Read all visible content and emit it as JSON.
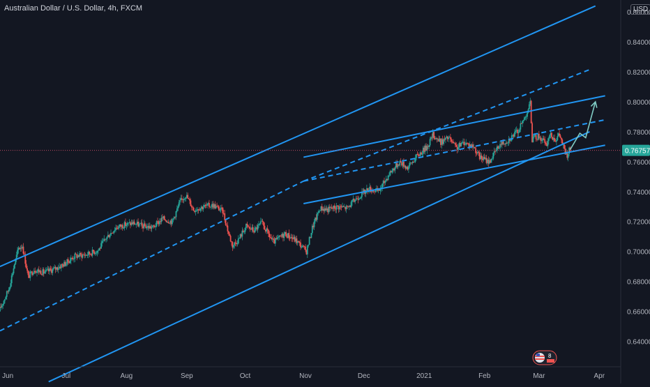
{
  "header": {
    "symbol": "Australian Dollar / U.S. Dollar, 4h, FXCM",
    "currency": "USD"
  },
  "colors": {
    "background": "#131722",
    "up": "#26a69a",
    "down": "#ef5350",
    "channel": "#2196f3",
    "projection_arrow": "#80cbc4",
    "price_label": "#26a69a",
    "price_line": "#b94a63"
  },
  "price_label": "0.76757",
  "badge": {
    "count": "8",
    "icon": "us-flag-icon"
  },
  "chart_data": {
    "type": "candlestick",
    "title": "",
    "symbol": "AUDUSD",
    "timeframe": "4h",
    "source": "FXCM",
    "x_tick_labels": [
      "Jun",
      "Jul",
      "Aug",
      "Sep",
      "Oct",
      "Nov",
      "Dec",
      "2021",
      "Feb",
      "Mar",
      "Apr"
    ],
    "y_tick_labels": [
      "0.86000",
      "0.84000",
      "0.82000",
      "0.80000",
      "0.78000",
      "0.76000",
      "0.74000",
      "0.72000",
      "0.70000",
      "0.68000",
      "0.66000",
      "0.64000"
    ],
    "x_ticks": [
      "2020-06-01",
      "2020-07-01",
      "2020-08-01",
      "2020-09-01",
      "2020-10-01",
      "2020-11-01",
      "2020-12-01",
      "2021-01-01",
      "2021-02-01",
      "2021-03-01",
      "2021-04-01"
    ],
    "y_ticks": [
      0.86,
      0.84,
      0.82,
      0.8,
      0.78,
      0.76,
      0.74,
      0.72,
      0.7,
      0.68,
      0.66,
      0.64
    ],
    "xlim": [
      "2020-05-28",
      "2021-04-12"
    ],
    "ylim": [
      0.623,
      0.868
    ],
    "last_price": 0.76757,
    "price_path": [
      [
        "2020-05-28",
        0.66
      ],
      [
        "2020-06-02",
        0.675
      ],
      [
        "2020-06-05",
        0.692
      ],
      [
        "2020-06-07",
        0.702
      ],
      [
        "2020-06-09",
        0.704
      ],
      [
        "2020-06-12",
        0.683
      ],
      [
        "2020-06-15",
        0.688
      ],
      [
        "2020-06-20",
        0.686
      ],
      [
        "2020-06-25",
        0.688
      ],
      [
        "2020-07-01",
        0.692
      ],
      [
        "2020-07-06",
        0.697
      ],
      [
        "2020-07-12",
        0.698
      ],
      [
        "2020-07-18",
        0.701
      ],
      [
        "2020-07-22",
        0.709
      ],
      [
        "2020-07-27",
        0.716
      ],
      [
        "2020-08-01",
        0.718
      ],
      [
        "2020-08-05",
        0.719
      ],
      [
        "2020-08-10",
        0.717
      ],
      [
        "2020-08-15",
        0.716
      ],
      [
        "2020-08-20",
        0.722
      ],
      [
        "2020-08-25",
        0.72
      ],
      [
        "2020-08-29",
        0.733
      ],
      [
        "2020-09-01",
        0.738
      ],
      [
        "2020-09-05",
        0.728
      ],
      [
        "2020-09-10",
        0.73
      ],
      [
        "2020-09-15",
        0.731
      ],
      [
        "2020-09-20",
        0.727
      ],
      [
        "2020-09-23",
        0.712
      ],
      [
        "2020-09-25",
        0.704
      ],
      [
        "2020-09-28",
        0.708
      ],
      [
        "2020-10-02",
        0.717
      ],
      [
        "2020-10-06",
        0.714
      ],
      [
        "2020-10-10",
        0.719
      ],
      [
        "2020-10-16",
        0.706
      ],
      [
        "2020-10-22",
        0.712
      ],
      [
        "2020-10-28",
        0.707
      ],
      [
        "2020-11-02",
        0.7
      ],
      [
        "2020-11-05",
        0.716
      ],
      [
        "2020-11-09",
        0.729
      ],
      [
        "2020-11-13",
        0.728
      ],
      [
        "2020-11-18",
        0.73
      ],
      [
        "2020-11-23",
        0.729
      ],
      [
        "2020-11-28",
        0.736
      ],
      [
        "2020-12-04",
        0.742
      ],
      [
        "2020-12-09",
        0.74
      ],
      [
        "2020-12-15",
        0.753
      ],
      [
        "2020-12-20",
        0.76
      ],
      [
        "2020-12-24",
        0.756
      ],
      [
        "2020-12-29",
        0.764
      ],
      [
        "2021-01-03",
        0.77
      ],
      [
        "2021-01-06",
        0.778
      ],
      [
        "2021-01-10",
        0.773
      ],
      [
        "2021-01-14",
        0.776
      ],
      [
        "2021-01-18",
        0.769
      ],
      [
        "2021-01-22",
        0.773
      ],
      [
        "2021-01-27",
        0.77
      ],
      [
        "2021-01-30",
        0.763
      ],
      [
        "2021-02-04",
        0.76
      ],
      [
        "2021-02-09",
        0.771
      ],
      [
        "2021-02-14",
        0.775
      ],
      [
        "2021-02-19",
        0.781
      ],
      [
        "2021-02-23",
        0.792
      ],
      [
        "2021-02-25",
        0.799
      ],
      [
        "2021-02-26",
        0.775
      ],
      [
        "2021-03-01",
        0.777
      ],
      [
        "2021-03-04",
        0.774
      ],
      [
        "2021-03-05",
        0.77
      ],
      [
        "2021-03-07",
        0.778
      ],
      [
        "2021-03-10",
        0.775
      ],
      [
        "2021-03-12",
        0.778
      ],
      [
        "2021-03-15",
        0.766
      ],
      [
        "2021-03-16",
        0.764
      ],
      [
        "2021-03-17",
        0.76757
      ]
    ],
    "trendlines": [
      {
        "style": "solid",
        "from": [
          "2020-05-28",
          0.69
        ],
        "to": [
          "2021-03-30",
          0.864
        ]
      },
      {
        "style": "dashed",
        "from": [
          "2020-05-28",
          0.647
        ],
        "to": [
          "2020-10-31",
          0.747
        ]
      },
      {
        "style": "dashed",
        "from": [
          "2020-10-31",
          0.747
        ],
        "to": [
          "2021-03-28",
          0.822
        ]
      },
      {
        "style": "solid",
        "from": [
          "2020-06-22",
          0.613
        ],
        "to": [
          "2021-03-27",
          0.78
        ]
      },
      {
        "style": "solid",
        "from": [
          "2020-10-31",
          0.763
        ],
        "to": [
          "2021-04-04",
          0.804
        ]
      },
      {
        "style": "dashed",
        "from": [
          "2020-10-31",
          0.747
        ],
        "to": [
          "2021-04-04",
          0.788
        ]
      },
      {
        "style": "solid",
        "from": [
          "2020-10-31",
          0.732
        ],
        "to": [
          "2021-04-04",
          0.771
        ]
      }
    ],
    "projection": [
      [
        "2021-03-17",
        0.768
      ],
      [
        "2021-03-22",
        0.779
      ],
      [
        "2021-03-25",
        0.776
      ],
      [
        "2021-03-30",
        0.8
      ]
    ],
    "grid": false,
    "legend": "none"
  }
}
